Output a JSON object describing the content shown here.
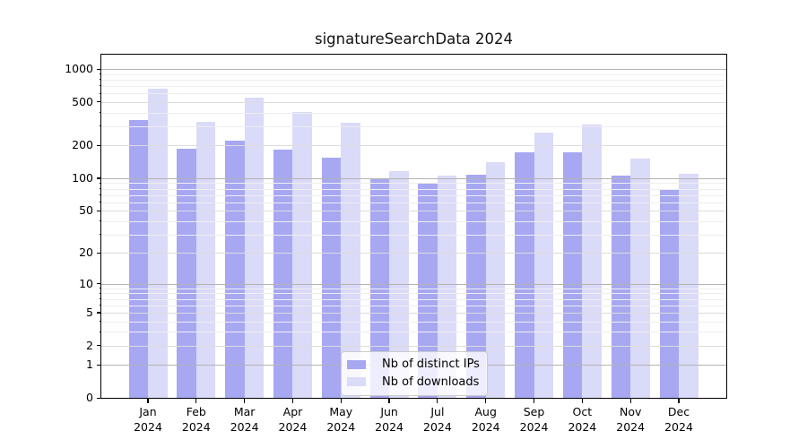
{
  "chart_data": {
    "type": "bar",
    "title": "signatureSearchData 2024",
    "categories": [
      "Jan",
      "Feb",
      "Mar",
      "Apr",
      "May",
      "Jun",
      "Jul",
      "Aug",
      "Sep",
      "Oct",
      "Nov",
      "Dec"
    ],
    "x_tick_year": "2024",
    "series": [
      {
        "name": "Nb of distinct IPs",
        "color": "#a7a7f2",
        "values": [
          340,
          185,
          220,
          183,
          154,
          98,
          91,
          107,
          172,
          173,
          105,
          79
        ]
      },
      {
        "name": "Nb of downloads",
        "color": "#dadaf9",
        "values": [
          665,
          330,
          545,
          405,
          325,
          115,
          106,
          140,
          262,
          310,
          150,
          110
        ]
      }
    ],
    "xlabel": "",
    "ylabel": "",
    "y_ticks": [
      0,
      1,
      2,
      5,
      10,
      20,
      50,
      100,
      200,
      500,
      1000
    ],
    "y_scale": "log10(value+1)",
    "ylim": [
      0,
      1352
    ],
    "grid": "horizontal",
    "legend_position": "lower-center-inside"
  },
  "colors": {
    "grid_major": "#b3b3b3",
    "grid_mid": "#dcdcdc",
    "grid_minor": "#eeeeee",
    "spine": "#000000",
    "text": "#000000"
  }
}
